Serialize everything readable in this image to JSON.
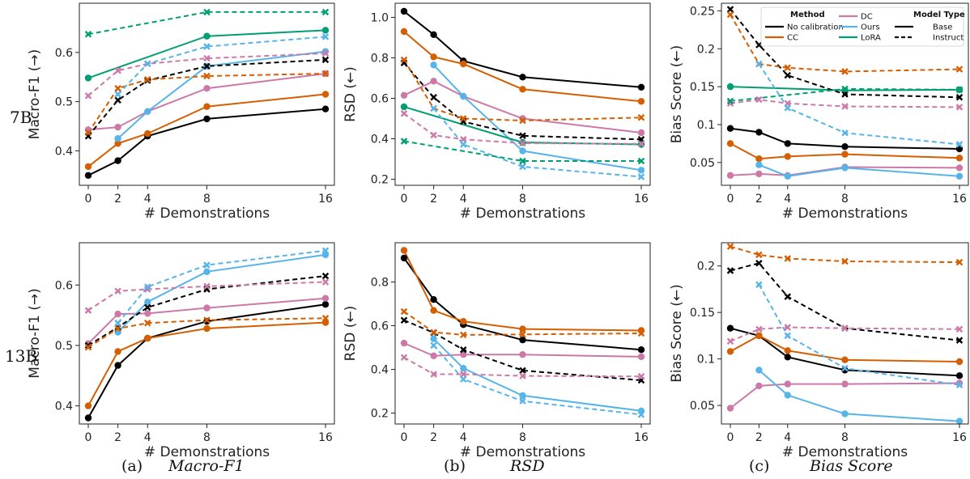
{
  "figure": {
    "row_labels": [
      "7B",
      "13B"
    ],
    "captions": [
      {
        "tag": "(a)",
        "name": "Macro-F1"
      },
      {
        "tag": "(b)",
        "name": "RSD"
      },
      {
        "tag": "(c)",
        "name": "Bias Score"
      }
    ]
  },
  "legend": {
    "method_title": "Method",
    "model_type_title": "Model Type",
    "methods": [
      {
        "name": "No calibration",
        "color": "#000000"
      },
      {
        "name": "CC",
        "color": "#d55e00"
      },
      {
        "name": "DC",
        "color": "#cc79a7"
      },
      {
        "name": "Ours",
        "color": "#56b4e9"
      },
      {
        "name": "LoRA",
        "color": "#009e73"
      }
    ],
    "model_types": [
      {
        "name": "Base",
        "dash": "solid"
      },
      {
        "name": "Instruct",
        "dash": "dashed"
      }
    ]
  },
  "colors": {
    "No calibration": "#000000",
    "CC": "#d55e00",
    "DC": "#cc79a7",
    "Ours": "#56b4e9",
    "LoRA": "#009e73"
  },
  "chart_data": [
    {
      "id": "f1-7b",
      "type": "line",
      "xlabel": "# Demonstrations",
      "ylabel": "Macro-F1 (→)",
      "xticks": [
        0,
        2,
        4,
        8,
        16
      ],
      "ylim": [
        0.33,
        0.7
      ],
      "yticks": [
        0.4,
        0.5,
        0.6
      ],
      "grid": false,
      "series": [
        {
          "method": "No calibration",
          "type": "Base",
          "x": [
            0,
            2,
            4,
            8,
            16
          ],
          "y": [
            0.35,
            0.38,
            0.43,
            0.465,
            0.485
          ]
        },
        {
          "method": "CC",
          "type": "Base",
          "x": [
            0,
            2,
            4,
            8,
            16
          ],
          "y": [
            0.368,
            0.415,
            0.435,
            0.49,
            0.515
          ]
        },
        {
          "method": "DC",
          "type": "Base",
          "x": [
            0,
            2,
            4,
            8,
            16
          ],
          "y": [
            0.443,
            0.448,
            0.48,
            0.527,
            0.557
          ]
        },
        {
          "method": "Ours",
          "type": "Base",
          "x": [
            2,
            4,
            8,
            16
          ],
          "y": [
            0.425,
            0.48,
            0.572,
            0.602
          ]
        },
        {
          "method": "LoRA",
          "type": "Base",
          "x": [
            0,
            8,
            16
          ],
          "y": [
            0.548,
            0.633,
            0.645
          ]
        },
        {
          "method": "No calibration",
          "type": "Instruct",
          "x": [
            0,
            2,
            4,
            8,
            16
          ],
          "y": [
            0.43,
            0.503,
            0.543,
            0.572,
            0.585
          ]
        },
        {
          "method": "CC",
          "type": "Instruct",
          "x": [
            0,
            2,
            4,
            8,
            16
          ],
          "y": [
            0.437,
            0.527,
            0.545,
            0.552,
            0.557
          ]
        },
        {
          "method": "DC",
          "type": "Instruct",
          "x": [
            0,
            2,
            4,
            8,
            16
          ],
          "y": [
            0.512,
            0.563,
            0.577,
            0.588,
            0.598
          ]
        },
        {
          "method": "Ours",
          "type": "Instruct",
          "x": [
            2,
            4,
            8,
            16
          ],
          "y": [
            0.515,
            0.577,
            0.612,
            0.632
          ]
        },
        {
          "method": "LoRA",
          "type": "Instruct",
          "x": [
            0,
            8,
            16
          ],
          "y": [
            0.637,
            0.682,
            0.682
          ]
        }
      ]
    },
    {
      "id": "rsd-7b",
      "type": "line",
      "xlabel": "# Demonstrations",
      "ylabel": "RSD (←)",
      "xticks": [
        0,
        2,
        4,
        8,
        16
      ],
      "ylim": [
        0.17,
        1.07
      ],
      "yticks": [
        0.2,
        0.4,
        0.6,
        0.8,
        1.0
      ],
      "grid": false,
      "series": [
        {
          "method": "No calibration",
          "type": "Base",
          "x": [
            0,
            2,
            4,
            8,
            16
          ],
          "y": [
            1.03,
            0.915,
            0.785,
            0.705,
            0.655
          ]
        },
        {
          "method": "CC",
          "type": "Base",
          "x": [
            0,
            2,
            4,
            8,
            16
          ],
          "y": [
            0.93,
            0.805,
            0.77,
            0.645,
            0.585
          ]
        },
        {
          "method": "DC",
          "type": "Base",
          "x": [
            0,
            2,
            4,
            8,
            16
          ],
          "y": [
            0.615,
            0.685,
            0.61,
            0.5,
            0.43
          ]
        },
        {
          "method": "Ours",
          "type": "Base",
          "x": [
            2,
            4,
            8,
            16
          ],
          "y": [
            0.765,
            0.61,
            0.34,
            0.245
          ]
        },
        {
          "method": "LoRA",
          "type": "Base",
          "x": [
            0,
            8,
            16
          ],
          "y": [
            0.558,
            0.382,
            0.372
          ]
        },
        {
          "method": "No calibration",
          "type": "Instruct",
          "x": [
            0,
            2,
            4,
            8,
            16
          ],
          "y": [
            0.775,
            0.605,
            0.485,
            0.415,
            0.397
          ]
        },
        {
          "method": "CC",
          "type": "Instruct",
          "x": [
            0,
            2,
            4,
            8,
            16
          ],
          "y": [
            0.79,
            0.55,
            0.5,
            0.49,
            0.505
          ]
        },
        {
          "method": "DC",
          "type": "Instruct",
          "x": [
            0,
            2,
            4,
            8,
            16
          ],
          "y": [
            0.525,
            0.418,
            0.397,
            0.378,
            0.375
          ]
        },
        {
          "method": "Ours",
          "type": "Instruct",
          "x": [
            2,
            4,
            8,
            16
          ],
          "y": [
            0.55,
            0.372,
            0.262,
            0.212
          ]
        },
        {
          "method": "LoRA",
          "type": "Instruct",
          "x": [
            0,
            8,
            16
          ],
          "y": [
            0.388,
            0.29,
            0.29
          ]
        }
      ]
    },
    {
      "id": "bias-7b",
      "type": "line",
      "xlabel": "# Demonstrations",
      "ylabel": "Bias Score (←)",
      "xticks": [
        0,
        2,
        4,
        8,
        16
      ],
      "ylim": [
        0.02,
        0.26
      ],
      "yticks": [
        0.05,
        0.1,
        0.15,
        0.2,
        0.25
      ],
      "grid": false,
      "legend": "top-right",
      "series": [
        {
          "method": "No calibration",
          "type": "Base",
          "x": [
            0,
            2,
            4,
            8,
            16
          ],
          "y": [
            0.095,
            0.09,
            0.075,
            0.071,
            0.068
          ]
        },
        {
          "method": "CC",
          "type": "Base",
          "x": [
            0,
            2,
            4,
            8,
            16
          ],
          "y": [
            0.075,
            0.055,
            0.058,
            0.061,
            0.056
          ]
        },
        {
          "method": "DC",
          "type": "Base",
          "x": [
            0,
            2,
            4,
            8,
            16
          ],
          "y": [
            0.033,
            0.035,
            0.033,
            0.044,
            0.043
          ]
        },
        {
          "method": "Ours",
          "type": "Base",
          "x": [
            2,
            4,
            8,
            16
          ],
          "y": [
            0.047,
            0.032,
            0.043,
            0.032
          ]
        },
        {
          "method": "LoRA",
          "type": "Base",
          "x": [
            0,
            8,
            16
          ],
          "y": [
            0.15,
            0.145,
            0.146
          ]
        },
        {
          "method": "No calibration",
          "type": "Instruct",
          "x": [
            0,
            2,
            4,
            8,
            16
          ],
          "y": [
            0.252,
            0.205,
            0.165,
            0.14,
            0.136
          ]
        },
        {
          "method": "CC",
          "type": "Instruct",
          "x": [
            0,
            2,
            4,
            8,
            16
          ],
          "y": [
            0.245,
            0.18,
            0.175,
            0.17,
            0.173
          ]
        },
        {
          "method": "DC",
          "type": "Instruct",
          "x": [
            0,
            2,
            4,
            8,
            16
          ],
          "y": [
            0.128,
            0.133,
            0.128,
            0.124,
            0.123
          ]
        },
        {
          "method": "Ours",
          "type": "Instruct",
          "x": [
            2,
            4,
            8,
            16
          ],
          "y": [
            0.18,
            0.122,
            0.089,
            0.074
          ]
        },
        {
          "method": "LoRA",
          "type": "Instruct",
          "x": [
            0,
            8,
            16
          ],
          "y": [
            0.131,
            0.147,
            0.146
          ]
        }
      ]
    },
    {
      "id": "f1-13b",
      "type": "line",
      "xlabel": "# Demonstrations",
      "ylabel": "Macro-F1 (→)",
      "xticks": [
        0,
        2,
        4,
        8,
        16
      ],
      "ylim": [
        0.37,
        0.67
      ],
      "yticks": [
        0.4,
        0.5,
        0.6
      ],
      "grid": false,
      "series": [
        {
          "method": "No calibration",
          "type": "Base",
          "x": [
            0,
            2,
            4,
            8,
            16
          ],
          "y": [
            0.38,
            0.467,
            0.512,
            0.54,
            0.568
          ]
        },
        {
          "method": "CC",
          "type": "Base",
          "x": [
            0,
            2,
            4,
            8,
            16
          ],
          "y": [
            0.4,
            0.49,
            0.512,
            0.528,
            0.538
          ]
        },
        {
          "method": "DC",
          "type": "Base",
          "x": [
            0,
            2,
            4,
            8,
            16
          ],
          "y": [
            0.503,
            0.552,
            0.553,
            0.562,
            0.578
          ]
        },
        {
          "method": "Ours",
          "type": "Base",
          "x": [
            2,
            4,
            8,
            16
          ],
          "y": [
            0.522,
            0.572,
            0.622,
            0.65
          ]
        },
        {
          "method": "No calibration",
          "type": "Instruct",
          "x": [
            0,
            2,
            4,
            8,
            16
          ],
          "y": [
            0.5,
            0.53,
            0.563,
            0.593,
            0.615
          ]
        },
        {
          "method": "CC",
          "type": "Instruct",
          "x": [
            0,
            2,
            4,
            8,
            16
          ],
          "y": [
            0.497,
            0.528,
            0.537,
            0.542,
            0.545
          ]
        },
        {
          "method": "DC",
          "type": "Instruct",
          "x": [
            0,
            2,
            4,
            8,
            16
          ],
          "y": [
            0.558,
            0.59,
            0.593,
            0.598,
            0.605
          ]
        },
        {
          "method": "Ours",
          "type": "Instruct",
          "x": [
            2,
            4,
            8,
            16
          ],
          "y": [
            0.537,
            0.597,
            0.633,
            0.657
          ]
        }
      ]
    },
    {
      "id": "rsd-13b",
      "type": "line",
      "xlabel": "# Demonstrations",
      "ylabel": "RSD (←)",
      "xticks": [
        0,
        2,
        4,
        8,
        16
      ],
      "ylim": [
        0.15,
        0.98
      ],
      "yticks": [
        0.2,
        0.4,
        0.6,
        0.8
      ],
      "grid": false,
      "series": [
        {
          "method": "No calibration",
          "type": "Base",
          "x": [
            0,
            2,
            4,
            8,
            16
          ],
          "y": [
            0.91,
            0.72,
            0.605,
            0.535,
            0.49
          ]
        },
        {
          "method": "CC",
          "type": "Base",
          "x": [
            0,
            2,
            4,
            8,
            16
          ],
          "y": [
            0.945,
            0.67,
            0.62,
            0.585,
            0.578
          ]
        },
        {
          "method": "DC",
          "type": "Base",
          "x": [
            0,
            2,
            4,
            8,
            16
          ],
          "y": [
            0.52,
            0.462,
            0.468,
            0.468,
            0.458
          ]
        },
        {
          "method": "Ours",
          "type": "Base",
          "x": [
            2,
            4,
            8,
            16
          ],
          "y": [
            0.54,
            0.405,
            0.28,
            0.21
          ]
        },
        {
          "method": "No calibration",
          "type": "Instruct",
          "x": [
            0,
            2,
            4,
            8,
            16
          ],
          "y": [
            0.625,
            0.568,
            0.49,
            0.395,
            0.35
          ]
        },
        {
          "method": "CC",
          "type": "Instruct",
          "x": [
            0,
            2,
            4,
            8,
            16
          ],
          "y": [
            0.665,
            0.57,
            0.558,
            0.56,
            0.565
          ]
        },
        {
          "method": "DC",
          "type": "Instruct",
          "x": [
            0,
            2,
            4,
            8,
            16
          ],
          "y": [
            0.455,
            0.378,
            0.378,
            0.37,
            0.368
          ]
        },
        {
          "method": "Ours",
          "type": "Instruct",
          "x": [
            2,
            4,
            8,
            16
          ],
          "y": [
            0.51,
            0.355,
            0.255,
            0.193
          ]
        }
      ]
    },
    {
      "id": "bias-13b",
      "type": "line",
      "xlabel": "# Demonstrations",
      "ylabel": "Bias Score (←)",
      "xticks": [
        0,
        2,
        4,
        8,
        16
      ],
      "ylim": [
        0.03,
        0.225
      ],
      "yticks": [
        0.05,
        0.1,
        0.15,
        0.2
      ],
      "grid": false,
      "series": [
        {
          "method": "No calibration",
          "type": "Base",
          "x": [
            0,
            2,
            4,
            8,
            16
          ],
          "y": [
            0.133,
            0.125,
            0.102,
            0.088,
            0.082
          ]
        },
        {
          "method": "CC",
          "type": "Base",
          "x": [
            0,
            2,
            4,
            8,
            16
          ],
          "y": [
            0.108,
            0.125,
            0.109,
            0.099,
            0.097
          ]
        },
        {
          "method": "DC",
          "type": "Base",
          "x": [
            0,
            2,
            4,
            8,
            16
          ],
          "y": [
            0.047,
            0.071,
            0.073,
            0.073,
            0.074
          ]
        },
        {
          "method": "Ours",
          "type": "Base",
          "x": [
            2,
            4,
            8,
            16
          ],
          "y": [
            0.088,
            0.061,
            0.041,
            0.033
          ]
        },
        {
          "method": "No calibration",
          "type": "Instruct",
          "x": [
            0,
            2,
            4,
            8,
            16
          ],
          "y": [
            0.195,
            0.203,
            0.167,
            0.133,
            0.12
          ]
        },
        {
          "method": "CC",
          "type": "Instruct",
          "x": [
            0,
            2,
            4,
            8,
            16
          ],
          "y": [
            0.221,
            0.212,
            0.208,
            0.205,
            0.204
          ]
        },
        {
          "method": "DC",
          "type": "Instruct",
          "x": [
            0,
            2,
            4,
            8,
            16
          ],
          "y": [
            0.119,
            0.132,
            0.134,
            0.133,
            0.132
          ]
        },
        {
          "method": "Ours",
          "type": "Instruct",
          "x": [
            2,
            4,
            8,
            16
          ],
          "y": [
            0.18,
            0.125,
            0.09,
            0.072
          ]
        }
      ]
    }
  ]
}
